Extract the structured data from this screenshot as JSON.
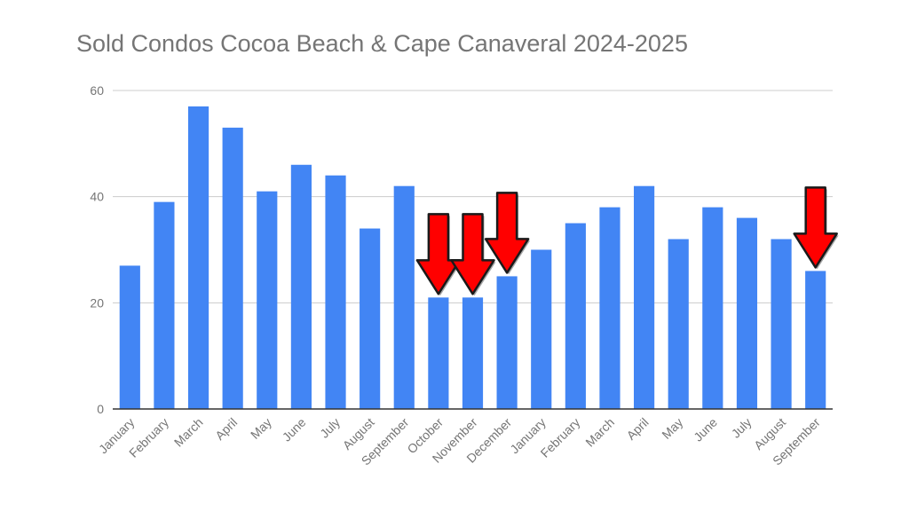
{
  "chart_data": {
    "type": "bar",
    "title": "Sold Condos Cocoa Beach & Cape Canaveral 2024-2025",
    "xlabel": "",
    "ylabel": "",
    "ylim": [
      0,
      60
    ],
    "yticks": [
      0,
      20,
      40,
      60
    ],
    "grid": true,
    "legend": "none",
    "categories": [
      "January",
      "February",
      "March",
      "April",
      "May",
      "June",
      "July",
      "August",
      "September",
      "October",
      "November",
      "December",
      "January",
      "February",
      "March",
      "April",
      "May",
      "June",
      "July",
      "August",
      "September"
    ],
    "values": [
      27,
      39,
      57,
      53,
      41,
      46,
      44,
      34,
      42,
      21,
      21,
      25,
      30,
      35,
      38,
      42,
      32,
      38,
      36,
      32,
      26
    ],
    "annotations": [
      {
        "type": "arrow",
        "category_index": 9,
        "color": "#ff0000"
      },
      {
        "type": "arrow",
        "category_index": 10,
        "color": "#ff0000"
      },
      {
        "type": "arrow",
        "category_index": 11,
        "color": "#ff0000"
      },
      {
        "type": "arrow",
        "category_index": 20,
        "color": "#ff0000"
      }
    ]
  },
  "colors": {
    "bar": "#4285f4",
    "grid": "#cccccc",
    "axis": "#333333",
    "arrow": "#ff0000"
  }
}
